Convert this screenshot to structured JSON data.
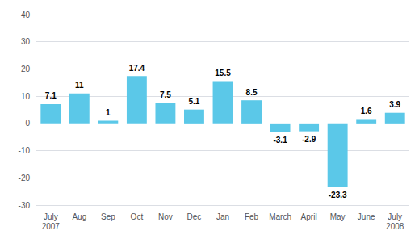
{
  "chart_data": {
    "type": "bar",
    "categories": [
      "July\n2007",
      "Aug",
      "Sep",
      "Oct",
      "Nov",
      "Dec",
      "Jan",
      "Feb",
      "March",
      "April",
      "May",
      "June",
      "July\n2008"
    ],
    "values": [
      7.1,
      11,
      1,
      17.4,
      7.5,
      5.1,
      15.5,
      8.5,
      -3.1,
      -2.9,
      -23.3,
      1.6,
      3.9
    ],
    "color": "#5BC8E8",
    "ylim": [
      -30,
      40
    ],
    "yticks": [
      -30,
      -20,
      -10,
      0,
      10,
      20,
      30,
      40
    ],
    "grid": true,
    "data_labels": true
  }
}
